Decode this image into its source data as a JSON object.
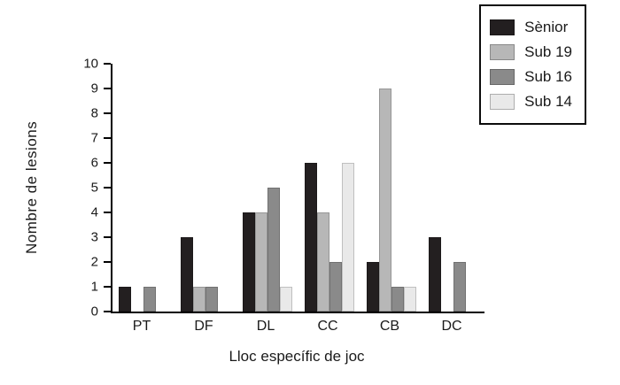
{
  "chart_data": {
    "type": "bar",
    "title": "",
    "xlabel": "Lloc específic de joc",
    "ylabel": "Nombre de lesions",
    "ylim": [
      0,
      10
    ],
    "ytick_step": 1,
    "grid": false,
    "legend_position": "top-right",
    "categories": [
      "PT",
      "DF",
      "DL",
      "CC",
      "CB",
      "DC"
    ],
    "series": [
      {
        "name": "Sènior",
        "color": "#231f20",
        "values": [
          1,
          3,
          4,
          6,
          2,
          3
        ]
      },
      {
        "name": "Sub 19",
        "color": "#b7b7b7",
        "values": [
          0,
          1,
          4,
          4,
          9,
          0
        ]
      },
      {
        "name": "Sub 16",
        "color": "#8a8a8a",
        "values": [
          1,
          1,
          5,
          2,
          1,
          2
        ]
      },
      {
        "name": "Sub 14",
        "color": "#e9e9e9",
        "values": [
          0,
          0,
          1,
          6,
          1,
          0
        ]
      }
    ]
  }
}
